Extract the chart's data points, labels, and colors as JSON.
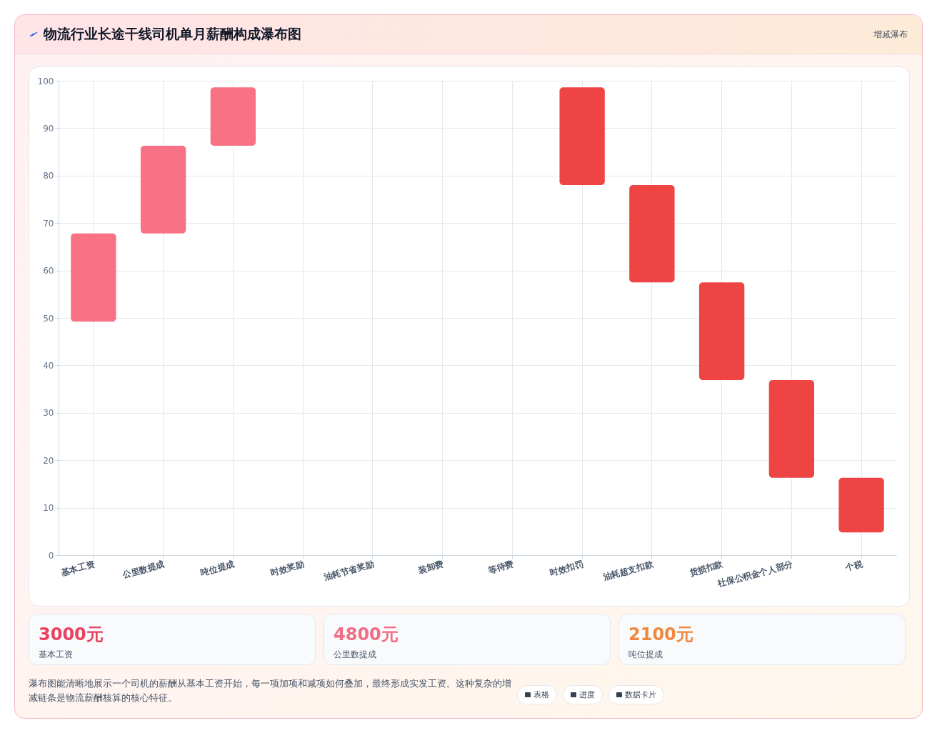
{
  "chart_data": {
    "type": "bar",
    "title": "物流行业长途干线司机单月薪酬构成瀑布图",
    "categories": [
      "基本工资",
      "公里数提成",
      "吨位提成",
      "时效奖励",
      "油耗节省奖励",
      "装卸费",
      "等待费",
      "时效扣罚",
      "油耗超支扣款",
      "货损扣款",
      "社保公积金个人部分",
      "个税"
    ],
    "base": [
      49.2,
      67.8,
      86.3,
      null,
      null,
      null,
      null,
      98.6,
      78.0,
      57.5,
      36.9,
      16.3
    ],
    "values": [
      18.6,
      18.5,
      12.3,
      null,
      null,
      null,
      null,
      -20.6,
      -20.5,
      -20.6,
      -20.6,
      -11.5
    ],
    "colors": [
      "#f87185",
      "#f87185",
      "#f87185",
      null,
      null,
      null,
      null,
      "#ef4444",
      "#ef4444",
      "#ef4444",
      "#ef4444",
      "#ef4444"
    ],
    "ylim": [
      0,
      100
    ],
    "yticks": [
      0,
      10,
      20,
      30,
      40,
      50,
      60,
      70,
      80,
      90,
      100
    ],
    "grid": true,
    "annotations": [
      "增减瀑布",
      "3000元",
      "基本工资",
      "4800元",
      "公里数提成",
      "2100元",
      "吨位提成",
      "瀑布图能清晰地展示一个司机的薪酬从基本工资开始，每一项加项和减项如何叠加，最终形成实发工资。这种复杂的增减链条是物流薪酬核算的核心特征。",
      "表格",
      "进度",
      "数据卡片"
    ]
  }
}
